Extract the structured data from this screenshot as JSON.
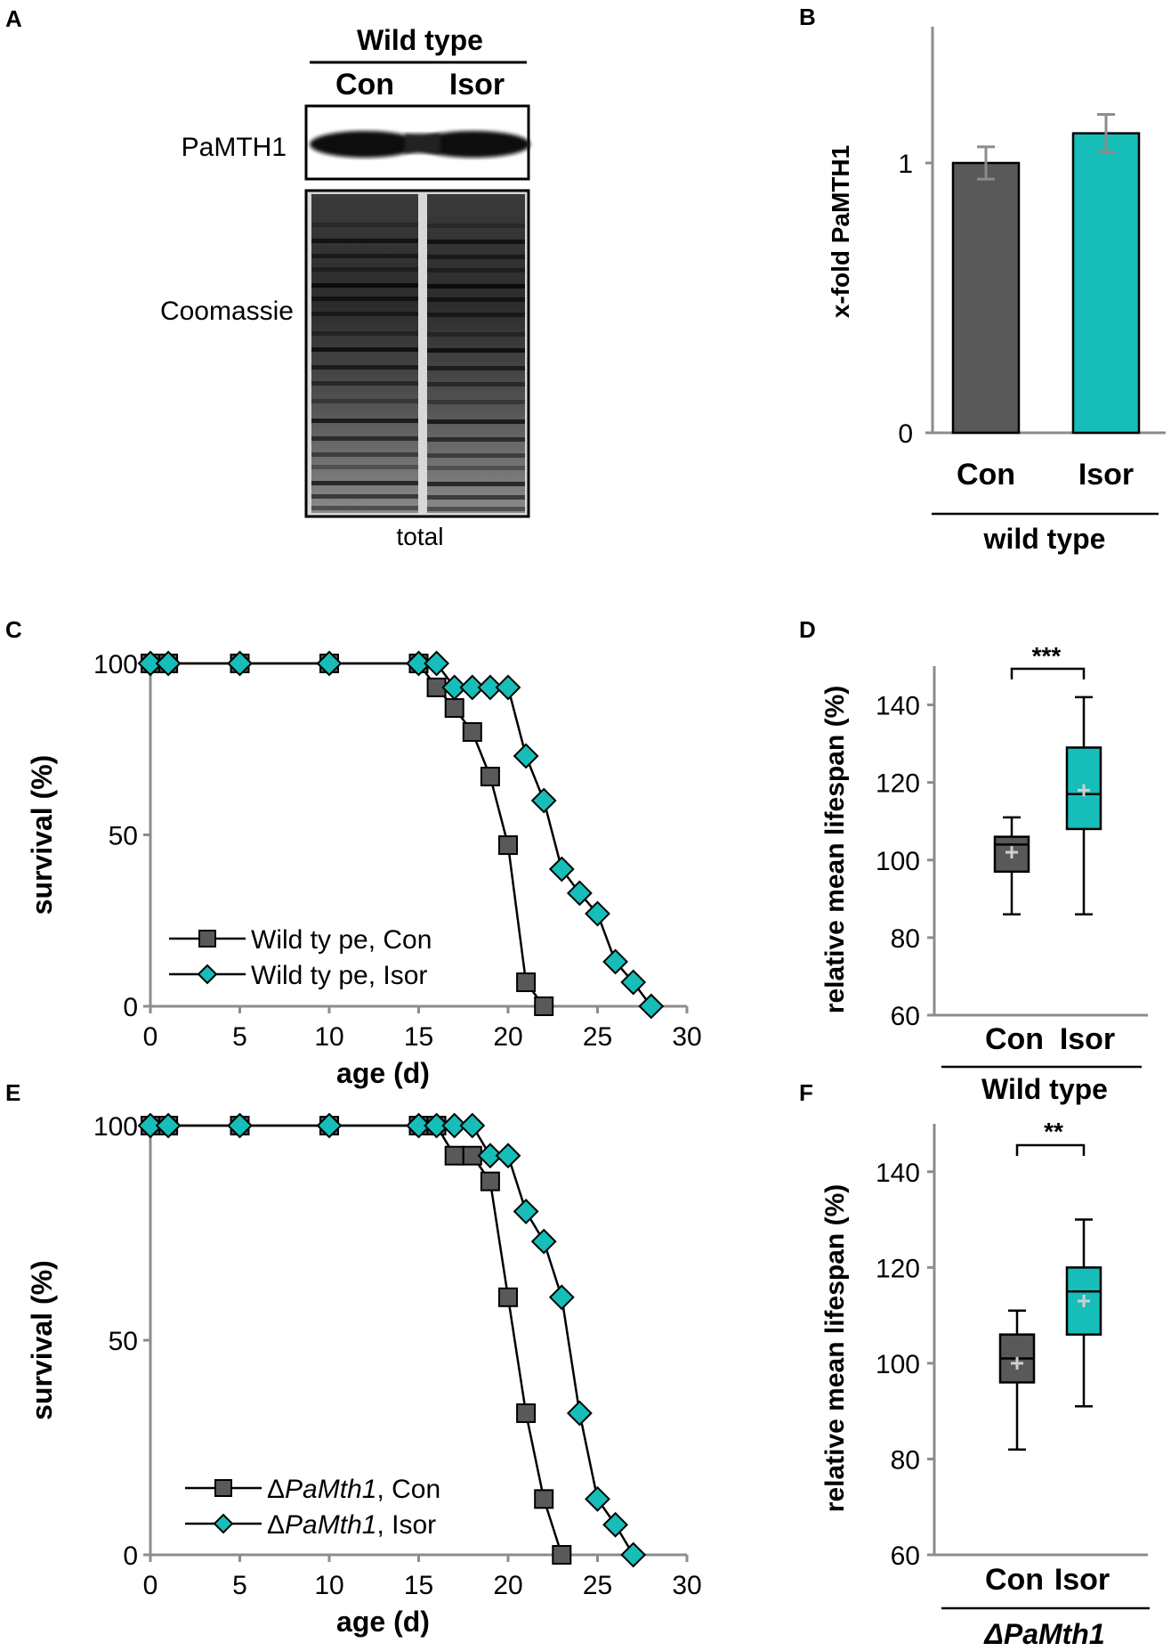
{
  "panels": {
    "A": {
      "label": "A",
      "header": "Wild type",
      "lanes": [
        "Con",
        "Isor"
      ],
      "blot_label": "PaMTH1",
      "gel_label": "Coomassie",
      "gel_caption": "total"
    },
    "B": {
      "label": "B",
      "group_label": "wild type"
    },
    "C": {
      "label": "C"
    },
    "D": {
      "label": "D",
      "significance": "***",
      "group_label": "Wild type"
    },
    "E": {
      "label": "E"
    },
    "F": {
      "label": "F",
      "significance": "**",
      "group_label": "ΔPaMth1"
    }
  },
  "colors": {
    "con": "#595959",
    "isor": "#17bdb8",
    "axis": "#8c8c8c"
  },
  "chart_data": [
    {
      "id": "B",
      "type": "bar",
      "categories": [
        "Con",
        "Isor"
      ],
      "values": [
        1.0,
        1.11
      ],
      "errors": [
        0.06,
        0.07
      ],
      "ylabel": "x-fold PaMTH1",
      "ylim": [
        0,
        1.5
      ],
      "yticks": [
        0,
        1
      ],
      "ytick_labels": [
        "0",
        "1"
      ]
    },
    {
      "id": "C",
      "type": "line",
      "xlabel": "age (d)",
      "ylabel": "survival (%)",
      "xlim": [
        0,
        30
      ],
      "ylim": [
        0,
        100
      ],
      "xticks": [
        0,
        5,
        10,
        15,
        20,
        25,
        30
      ],
      "xtick_labels": [
        "0",
        "5",
        "10",
        "15",
        "20",
        "25",
        "30"
      ],
      "yticks": [
        0,
        50,
        100
      ],
      "ytick_labels": [
        "0",
        "50",
        "100"
      ],
      "series": [
        {
          "name": "Wild type, Con",
          "legend_prefix": "Wild ty pe",
          "legend_italic": "",
          "legend_suffix": ", Con",
          "marker": "square",
          "x": [
            0,
            1,
            5,
            10,
            15,
            16,
            17,
            18,
            19,
            20,
            21,
            22
          ],
          "y": [
            100,
            100,
            100,
            100,
            100,
            93,
            87,
            80,
            67,
            47,
            7,
            0
          ]
        },
        {
          "name": "Wild type, Isor",
          "legend_prefix": "Wild ty pe",
          "legend_italic": "",
          "legend_suffix": ", Isor",
          "marker": "diamond",
          "x": [
            0,
            1,
            5,
            10,
            15,
            16,
            17,
            18,
            19,
            20,
            21,
            22,
            23,
            24,
            25,
            26,
            27,
            28
          ],
          "y": [
            100,
            100,
            100,
            100,
            100,
            100,
            93,
            93,
            93,
            93,
            73,
            60,
            40,
            33,
            27,
            13,
            7,
            0
          ]
        }
      ]
    },
    {
      "id": "D",
      "type": "box",
      "categories": [
        "Con",
        "Isor"
      ],
      "ylabel": "relative mean lifespan (%)",
      "ylim": [
        60,
        150
      ],
      "yticks": [
        60,
        80,
        100,
        120,
        140
      ],
      "ytick_labels": [
        "60",
        "80",
        "100",
        "120",
        "140"
      ],
      "boxes": [
        {
          "whisker_low": 86,
          "q1": 97,
          "median": 104,
          "q3": 106,
          "whisker_high": 111,
          "mean": 102
        },
        {
          "whisker_low": 86,
          "q1": 108,
          "median": 117,
          "q3": 129,
          "whisker_high": 142,
          "mean": 118
        }
      ]
    },
    {
      "id": "E",
      "type": "line",
      "xlabel": "age (d)",
      "ylabel": "survival (%)",
      "xlim": [
        0,
        30
      ],
      "ylim": [
        0,
        100
      ],
      "xticks": [
        0,
        5,
        10,
        15,
        20,
        25,
        30
      ],
      "xtick_labels": [
        "0",
        "5",
        "10",
        "15",
        "20",
        "25",
        "30"
      ],
      "yticks": [
        0,
        50,
        100
      ],
      "ytick_labels": [
        "0",
        "50",
        "100"
      ],
      "series": [
        {
          "name": "ΔPaMth1, Con",
          "legend_prefix": "Δ",
          "legend_italic": "PaMth1",
          "legend_suffix": ", Con",
          "marker": "square",
          "x": [
            0,
            1,
            5,
            10,
            15,
            16,
            17,
            18,
            19,
            20,
            21,
            22,
            23
          ],
          "y": [
            100,
            100,
            100,
            100,
            100,
            100,
            93,
            93,
            87,
            60,
            33,
            13,
            0
          ]
        },
        {
          "name": "ΔPaMth1, Isor",
          "legend_prefix": "Δ",
          "legend_italic": "PaMth1",
          "legend_suffix": ", Isor",
          "marker": "diamond",
          "x": [
            0,
            1,
            5,
            10,
            15,
            16,
            17,
            18,
            19,
            20,
            21,
            22,
            23,
            24,
            25,
            26,
            27
          ],
          "y": [
            100,
            100,
            100,
            100,
            100,
            100,
            100,
            100,
            93,
            93,
            80,
            73,
            60,
            33,
            13,
            7,
            0
          ]
        }
      ]
    },
    {
      "id": "F",
      "type": "box",
      "categories": [
        "Con",
        "Isor"
      ],
      "ylabel": "relative mean lifespan (%)",
      "ylim": [
        60,
        150
      ],
      "yticks": [
        60,
        80,
        100,
        120,
        140
      ],
      "ytick_labels": [
        "60",
        "80",
        "100",
        "120",
        "140"
      ],
      "boxes": [
        {
          "whisker_low": 82,
          "q1": 96,
          "median": 101,
          "q3": 106,
          "whisker_high": 111,
          "mean": 100
        },
        {
          "whisker_low": 91,
          "q1": 106,
          "median": 115,
          "q3": 120,
          "whisker_high": 130,
          "mean": 113
        }
      ]
    }
  ]
}
